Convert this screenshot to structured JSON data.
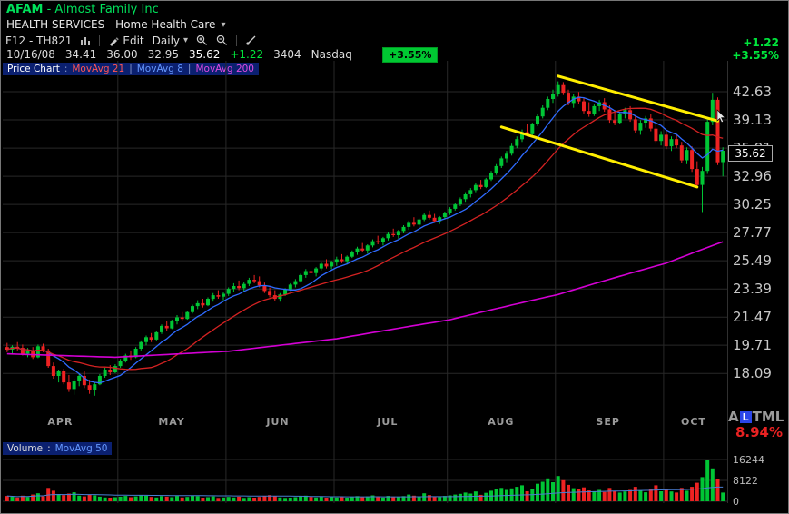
{
  "header": {
    "symbol": "AFAM",
    "title_rest": "- Almost Family Inc",
    "sector": "HEALTH SERVICES - Home Health Care",
    "right_change": "+1.22",
    "right_change_pct": "+3.55%"
  },
  "toolbar": {
    "preset": "F12 - TH821",
    "edit": "Edit",
    "period": "Daily"
  },
  "quote": {
    "date": "10/16/08",
    "open": "34.41",
    "high": "36.00",
    "low": "32.95",
    "last": "35.62",
    "change": "+1.22",
    "volume": "3404",
    "exchange": "Nasdaq",
    "badge": "+3.55%"
  },
  "legend": {
    "pane": "Price Chart",
    "ma21": "MovAvg 21",
    "ma8": "MovAvg 8",
    "ma200": "MovAvg 200"
  },
  "volume_legend": {
    "pane": "Volume",
    "ma": "MovAvg 50"
  },
  "scale_footer": {
    "a": "A",
    "l": "L",
    "tml": "TML",
    "pct": "8.94%"
  },
  "colors": {
    "up": "#00c535",
    "down": "#ee2222",
    "ma8": "#2f6bff",
    "ma21": "#d42222",
    "ma200": "#d400d4",
    "trend": "#ffee00",
    "grid": "#282828",
    "axis_sep": "#303030",
    "vol_ma": "#4a7fd4"
  },
  "chart_data": {
    "type": "candlestick+volume",
    "title": "AFAM - Almost Family Inc - Daily",
    "log_scale": true,
    "grid_step_pct": "8.94%",
    "price_axis_labels": [
      "42.63",
      "39.13",
      "35.91",
      "32.96",
      "30.25",
      "27.77",
      "25.49",
      "23.39",
      "21.47",
      "19.71",
      "18.09"
    ],
    "volume_axis_labels": [
      "16244",
      "8122",
      "0"
    ],
    "months": [
      {
        "label": "APR",
        "start": 0
      },
      {
        "label": "MAY",
        "start": 22
      },
      {
        "label": "JUN",
        "start": 43
      },
      {
        "label": "JUL",
        "start": 64
      },
      {
        "label": "AUG",
        "start": 86
      },
      {
        "label": "SEP",
        "start": 107
      },
      {
        "label": "OCT",
        "start": 128
      }
    ],
    "ohlc": [
      [
        19.6,
        19.85,
        19.3,
        19.45
      ],
      [
        19.45,
        19.7,
        19.2,
        19.62
      ],
      [
        19.62,
        19.9,
        19.4,
        19.55
      ],
      [
        19.55,
        19.75,
        19.1,
        19.2
      ],
      [
        19.2,
        19.55,
        19.0,
        19.4
      ],
      [
        19.4,
        19.6,
        18.9,
        19.0
      ],
      [
        19.0,
        19.75,
        18.95,
        19.65
      ],
      [
        19.65,
        19.8,
        19.3,
        19.4
      ],
      [
        19.4,
        19.5,
        18.4,
        18.5
      ],
      [
        18.5,
        18.7,
        17.8,
        17.95
      ],
      [
        17.95,
        18.3,
        17.6,
        18.2
      ],
      [
        18.2,
        18.35,
        17.5,
        17.6
      ],
      [
        17.6,
        18.0,
        17.1,
        17.25
      ],
      [
        17.25,
        17.8,
        16.95,
        17.7
      ],
      [
        17.7,
        18.1,
        17.4,
        17.95
      ],
      [
        17.95,
        18.2,
        17.3,
        17.45
      ],
      [
        17.45,
        17.75,
        17.0,
        17.2
      ],
      [
        17.2,
        17.6,
        16.9,
        17.5
      ],
      [
        17.5,
        18.05,
        17.45,
        17.95
      ],
      [
        17.95,
        18.4,
        17.85,
        18.3
      ],
      [
        18.3,
        18.55,
        18.0,
        18.15
      ],
      [
        18.15,
        18.6,
        18.1,
        18.5
      ],
      [
        18.5,
        18.9,
        18.4,
        18.8
      ],
      [
        18.8,
        19.2,
        18.7,
        19.1
      ],
      [
        19.1,
        19.4,
        18.85,
        19.0
      ],
      [
        19.0,
        19.6,
        18.95,
        19.5
      ],
      [
        19.5,
        20.0,
        19.4,
        19.9
      ],
      [
        19.9,
        20.3,
        19.7,
        20.2
      ],
      [
        20.2,
        20.45,
        19.9,
        20.05
      ],
      [
        20.05,
        20.6,
        20.0,
        20.5
      ],
      [
        20.5,
        21.0,
        20.4,
        20.9
      ],
      [
        20.9,
        21.2,
        20.6,
        20.75
      ],
      [
        20.75,
        21.3,
        20.7,
        21.2
      ],
      [
        21.2,
        21.6,
        21.0,
        21.45
      ],
      [
        21.45,
        21.8,
        21.2,
        21.35
      ],
      [
        21.35,
        21.9,
        21.3,
        21.8
      ],
      [
        21.8,
        22.3,
        21.7,
        22.2
      ],
      [
        22.2,
        22.6,
        22.0,
        22.4
      ],
      [
        22.4,
        22.7,
        22.1,
        22.25
      ],
      [
        22.25,
        22.8,
        22.2,
        22.7
      ],
      [
        22.7,
        23.1,
        22.5,
        22.95
      ],
      [
        22.95,
        23.3,
        22.7,
        22.85
      ],
      [
        22.85,
        23.2,
        22.6,
        23.05
      ],
      [
        23.05,
        23.5,
        22.9,
        23.4
      ],
      [
        23.4,
        23.8,
        23.2,
        23.6
      ],
      [
        23.6,
        24.0,
        23.3,
        23.45
      ],
      [
        23.45,
        23.9,
        23.2,
        23.75
      ],
      [
        23.75,
        24.2,
        23.6,
        24.05
      ],
      [
        24.05,
        24.4,
        23.8,
        23.95
      ],
      [
        23.95,
        24.3,
        23.5,
        23.65
      ],
      [
        23.65,
        23.85,
        23.1,
        23.25
      ],
      [
        23.25,
        23.5,
        22.8,
        22.95
      ],
      [
        22.95,
        23.3,
        22.55,
        22.7
      ],
      [
        22.7,
        23.1,
        22.5,
        23.0
      ],
      [
        23.0,
        23.45,
        22.9,
        23.35
      ],
      [
        23.35,
        23.8,
        23.25,
        23.7
      ],
      [
        23.7,
        24.1,
        23.5,
        23.95
      ],
      [
        23.95,
        24.5,
        23.85,
        24.4
      ],
      [
        24.4,
        24.85,
        24.2,
        24.7
      ],
      [
        24.7,
        25.1,
        24.4,
        24.55
      ],
      [
        24.55,
        25.0,
        24.3,
        24.9
      ],
      [
        24.9,
        25.4,
        24.75,
        25.25
      ],
      [
        25.25,
        25.6,
        24.9,
        25.05
      ],
      [
        25.05,
        25.5,
        24.85,
        25.35
      ],
      [
        25.35,
        25.8,
        25.1,
        25.6
      ],
      [
        25.6,
        26.0,
        25.3,
        25.45
      ],
      [
        25.45,
        25.9,
        25.2,
        25.8
      ],
      [
        25.8,
        26.3,
        25.7,
        26.15
      ],
      [
        26.15,
        26.6,
        25.95,
        26.45
      ],
      [
        26.45,
        26.9,
        26.2,
        26.3
      ],
      [
        26.3,
        26.8,
        26.05,
        26.7
      ],
      [
        26.7,
        27.2,
        26.55,
        27.05
      ],
      [
        27.05,
        27.5,
        26.8,
        26.95
      ],
      [
        26.95,
        27.4,
        26.7,
        27.3
      ],
      [
        27.3,
        27.8,
        27.1,
        27.65
      ],
      [
        27.65,
        28.1,
        27.4,
        27.55
      ],
      [
        27.55,
        28.0,
        27.25,
        27.9
      ],
      [
        27.9,
        28.4,
        27.7,
        28.25
      ],
      [
        28.25,
        28.8,
        28.0,
        28.6
      ],
      [
        28.6,
        29.1,
        28.3,
        28.45
      ],
      [
        28.45,
        29.0,
        28.2,
        28.9
      ],
      [
        28.9,
        29.5,
        28.75,
        29.3
      ],
      [
        29.3,
        29.7,
        28.9,
        29.05
      ],
      [
        29.05,
        29.4,
        28.6,
        28.75
      ],
      [
        28.75,
        29.2,
        28.5,
        29.1
      ],
      [
        29.1,
        29.6,
        28.95,
        29.45
      ],
      [
        29.45,
        30.0,
        29.3,
        29.85
      ],
      [
        29.85,
        30.4,
        29.7,
        30.25
      ],
      [
        30.25,
        30.9,
        30.1,
        30.75
      ],
      [
        30.75,
        31.4,
        30.5,
        31.2
      ],
      [
        31.2,
        31.8,
        30.9,
        31.6
      ],
      [
        31.6,
        32.3,
        31.4,
        32.1
      ],
      [
        32.1,
        32.6,
        31.7,
        31.9
      ],
      [
        31.9,
        32.8,
        31.8,
        32.65
      ],
      [
        32.65,
        33.5,
        32.5,
        33.3
      ],
      [
        33.3,
        34.2,
        33.1,
        34.0
      ],
      [
        34.0,
        35.0,
        33.8,
        34.8
      ],
      [
        34.8,
        35.6,
        34.4,
        35.3
      ],
      [
        35.3,
        36.4,
        35.1,
        36.15
      ],
      [
        36.15,
        37.2,
        35.9,
        36.9
      ],
      [
        36.9,
        38.0,
        36.6,
        37.7
      ],
      [
        37.7,
        38.6,
        37.2,
        37.45
      ],
      [
        37.45,
        38.8,
        37.3,
        38.6
      ],
      [
        38.6,
        39.8,
        38.4,
        39.55
      ],
      [
        39.55,
        40.9,
        39.3,
        40.6
      ],
      [
        40.6,
        42.0,
        40.3,
        41.7
      ],
      [
        41.7,
        42.9,
        41.2,
        42.4
      ],
      [
        42.4,
        43.99,
        42.0,
        43.5
      ],
      [
        43.5,
        43.9,
        42.2,
        42.5
      ],
      [
        42.5,
        42.9,
        40.9,
        41.2
      ],
      [
        41.2,
        42.3,
        40.6,
        42.0
      ],
      [
        42.0,
        42.6,
        41.1,
        41.4
      ],
      [
        41.4,
        41.9,
        39.9,
        40.2
      ],
      [
        40.2,
        41.3,
        39.5,
        39.8
      ],
      [
        39.8,
        41.0,
        39.6,
        40.8
      ],
      [
        40.8,
        41.6,
        40.2,
        41.3
      ],
      [
        41.3,
        41.8,
        40.1,
        40.4
      ],
      [
        40.4,
        40.9,
        38.8,
        39.1
      ],
      [
        39.1,
        40.2,
        38.5,
        38.8
      ],
      [
        38.8,
        40.0,
        38.6,
        39.8
      ],
      [
        39.8,
        40.6,
        39.3,
        40.3
      ],
      [
        40.3,
        40.8,
        38.9,
        39.2
      ],
      [
        39.2,
        39.7,
        37.6,
        37.9
      ],
      [
        37.9,
        39.1,
        37.4,
        38.8
      ],
      [
        38.8,
        39.6,
        38.2,
        39.3
      ],
      [
        39.3,
        39.8,
        37.8,
        38.1
      ],
      [
        38.1,
        38.6,
        36.4,
        36.7
      ],
      [
        36.7,
        37.8,
        36.2,
        37.4
      ],
      [
        37.4,
        37.9,
        35.8,
        36.1
      ],
      [
        36.1,
        37.2,
        35.6,
        36.9
      ],
      [
        36.9,
        37.4,
        35.9,
        36.2
      ],
      [
        36.2,
        36.6,
        34.3,
        34.6
      ],
      [
        34.6,
        36.0,
        34.2,
        35.7
      ],
      [
        35.7,
        36.1,
        33.4,
        33.7
      ],
      [
        33.7,
        34.5,
        31.8,
        32.1
      ],
      [
        32.1,
        33.9,
        29.56,
        33.5
      ],
      [
        33.5,
        39.4,
        33.2,
        38.9
      ],
      [
        38.9,
        42.49,
        38.5,
        41.6
      ],
      [
        41.6,
        41.9,
        34.1,
        34.4
      ],
      [
        34.41,
        36.0,
        32.95,
        35.62
      ]
    ],
    "volume": [
      2100,
      1800,
      1500,
      2200,
      1700,
      2600,
      3100,
      1900,
      5200,
      4100,
      2800,
      2400,
      3000,
      3500,
      2200,
      1900,
      2600,
      2300,
      1800,
      1500,
      1400,
      1600,
      1800,
      2100,
      1600,
      1900,
      2400,
      2200,
      1700,
      1500,
      2000,
      1800,
      1600,
      2100,
      1500,
      1700,
      2300,
      2000,
      1400,
      1600,
      1900,
      1300,
      1500,
      1700,
      1500,
      1800,
      1300,
      1600,
      1400,
      1700,
      2100,
      2400,
      2000,
      1500,
      1300,
      1400,
      1600,
      1900,
      2200,
      1700,
      1500,
      1800,
      1400,
      1600,
      1500,
      1700,
      1400,
      1800,
      2000,
      1600,
      1900,
      2300,
      1700,
      1500,
      2100,
      1800,
      1600,
      2000,
      2600,
      2200,
      1900,
      3100,
      2400,
      1800,
      1700,
      2100,
      2300,
      2600,
      2900,
      3400,
      3000,
      3800,
      2500,
      3300,
      4100,
      4600,
      5200,
      4400,
      5000,
      5600,
      6200,
      3900,
      4800,
      6800,
      7600,
      8900,
      7400,
      9800,
      8200,
      6400,
      5100,
      4600,
      5400,
      4200,
      3800,
      4400,
      3600,
      5200,
      4000,
      3400,
      3800,
      4400,
      5600,
      4100,
      3500,
      4700,
      6200,
      3900,
      4600,
      3800,
      3400,
      5200,
      4100,
      5600,
      7200,
      9400,
      16244,
      12800,
      8600,
      3404
    ],
    "ma200_waypoints": [
      [
        0,
        19.2
      ],
      [
        21,
        19.0
      ],
      [
        43,
        19.35
      ],
      [
        64,
        20.1
      ],
      [
        86,
        21.3
      ],
      [
        107,
        23.0
      ],
      [
        128,
        25.3
      ],
      [
        139,
        27.0
      ]
    ],
    "trendlines": {
      "upper": [
        [
          107,
          44.7
        ],
        [
          138,
          39.0
        ]
      ],
      "lower": [
        [
          96,
          38.3
        ],
        [
          134,
          31.9
        ]
      ]
    }
  }
}
